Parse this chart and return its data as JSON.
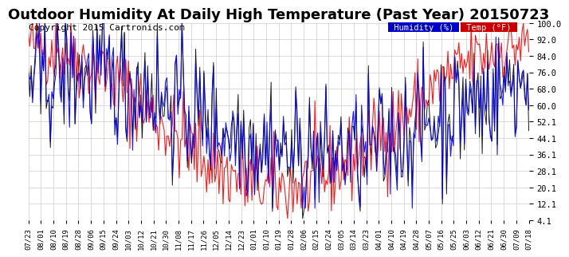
{
  "title": "Outdoor Humidity At Daily High Temperature (Past Year) 20150723",
  "copyright": "Copyright 2015 Cartronics.com",
  "legend_humidity": "Humidity (%)",
  "legend_temp": "Temp (°F)",
  "humidity_color": "#0000ff",
  "temp_color": "#ff0000",
  "black_color": "#000000",
  "legend_humidity_bg": "#0000cc",
  "legend_temp_bg": "#cc0000",
  "ylim_min": 4.1,
  "ylim_max": 100.0,
  "yticks": [
    4.1,
    12.1,
    20.1,
    28.1,
    36.1,
    44.1,
    52.1,
    60.0,
    68.0,
    76.0,
    84.0,
    92.0,
    100.0
  ],
  "background_color": "#ffffff",
  "grid_color": "#cccccc",
  "title_fontsize": 13,
  "copyright_fontsize": 8,
  "x_labels": [
    "07/23",
    "08/01",
    "08/10",
    "08/19",
    "08/28",
    "09/06",
    "09/15",
    "09/24",
    "10/03",
    "10/12",
    "10/21",
    "10/30",
    "11/08",
    "11/17",
    "11/26",
    "12/05",
    "12/14",
    "12/23",
    "01/01",
    "01/10",
    "01/19",
    "01/28",
    "02/06",
    "02/15",
    "02/24",
    "03/05",
    "03/14",
    "03/23",
    "04/01",
    "04/10",
    "04/19",
    "04/28",
    "05/07",
    "05/16",
    "05/25",
    "06/03",
    "06/12",
    "06/21",
    "06/30",
    "07/09",
    "07/18"
  ],
  "num_points": 366
}
